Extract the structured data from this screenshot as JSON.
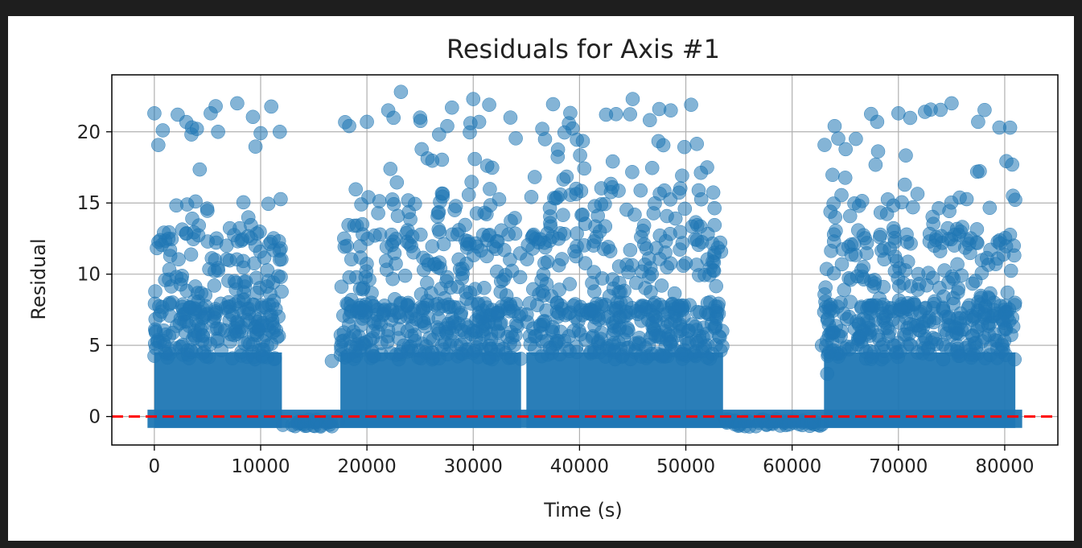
{
  "chart_data": {
    "type": "scatter",
    "title": "Residuals for Axis #1",
    "xlabel": "Time (s)",
    "ylabel": "Residual",
    "xlim": [
      -4000,
      85000
    ],
    "ylim": [
      -2,
      24
    ],
    "xticks": [
      0,
      10000,
      20000,
      30000,
      40000,
      50000,
      60000,
      70000,
      80000
    ],
    "yticks": [
      0,
      5,
      10,
      15,
      20
    ],
    "grid": true,
    "point_color": "#1f77b4",
    "point_alpha": 0.55,
    "reference_line": {
      "y": 0,
      "color": "#ff0000",
      "style": "dashed"
    },
    "dense_segments": [
      {
        "x_start": 0,
        "x_end": 12000
      },
      {
        "x_start": 17500,
        "x_end": 34500
      },
      {
        "x_start": 35000,
        "x_end": 53500
      },
      {
        "x_start": 63000,
        "x_end": 81000
      }
    ],
    "sparse_segments": [
      {
        "x_start": 12000,
        "x_end": 17500
      },
      {
        "x_start": 53500,
        "x_end": 63000
      }
    ],
    "sample_outliers": [
      {
        "x": 0,
        "y": 21.3
      },
      {
        "x": 800,
        "y": 20.1
      },
      {
        "x": 2200,
        "y": 21.2
      },
      {
        "x": 4000,
        "y": 20.2
      },
      {
        "x": 5300,
        "y": 21.3
      },
      {
        "x": 6000,
        "y": 20.0
      },
      {
        "x": 7800,
        "y": 22.0
      },
      {
        "x": 10000,
        "y": 19.9
      },
      {
        "x": 11800,
        "y": 20.0
      },
      {
        "x": 16700,
        "y": 3.9
      },
      {
        "x": 20000,
        "y": 20.7
      },
      {
        "x": 22000,
        "y": 21.5
      },
      {
        "x": 23200,
        "y": 22.8
      },
      {
        "x": 25000,
        "y": 21.0
      },
      {
        "x": 28000,
        "y": 21.7
      },
      {
        "x": 30000,
        "y": 22.3
      },
      {
        "x": 31500,
        "y": 21.9
      },
      {
        "x": 33500,
        "y": 21.0
      },
      {
        "x": 36500,
        "y": 20.2
      },
      {
        "x": 39000,
        "y": 20.6
      },
      {
        "x": 42500,
        "y": 21.2
      },
      {
        "x": 45000,
        "y": 22.3
      },
      {
        "x": 47500,
        "y": 21.6
      },
      {
        "x": 50500,
        "y": 21.9
      },
      {
        "x": 52000,
        "y": 17.5
      },
      {
        "x": 62800,
        "y": 5.0
      },
      {
        "x": 63300,
        "y": 3.0
      },
      {
        "x": 64000,
        "y": 20.4
      },
      {
        "x": 66000,
        "y": 19.5
      },
      {
        "x": 68000,
        "y": 20.7
      },
      {
        "x": 70000,
        "y": 21.3
      },
      {
        "x": 72500,
        "y": 21.4
      },
      {
        "x": 75000,
        "y": 22.0
      },
      {
        "x": 77500,
        "y": 20.7
      },
      {
        "x": 79500,
        "y": 20.3
      },
      {
        "x": 80700,
        "y": 17.7
      }
    ]
  }
}
